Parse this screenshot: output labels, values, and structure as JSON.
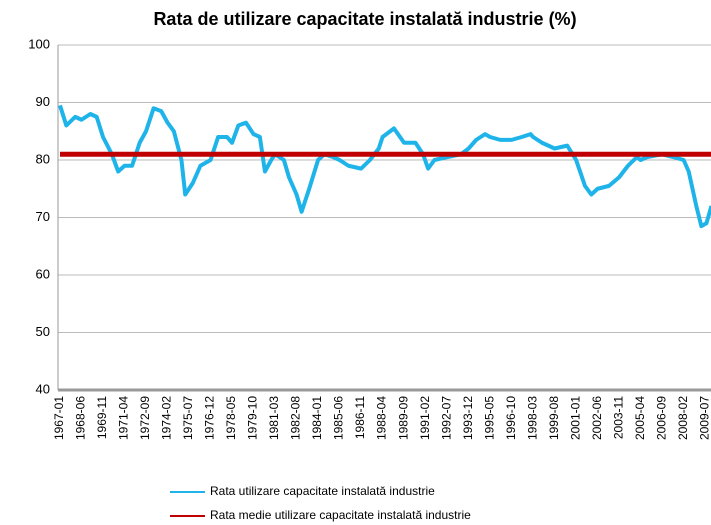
{
  "chart_data": {
    "type": "line",
    "title": "Rata de utilizare capacitate instalată industrie (%)",
    "ylim": [
      40,
      100
    ],
    "yticks": [
      40,
      50,
      60,
      70,
      80,
      90,
      100
    ],
    "grid": true,
    "xticks": [
      "1967-01",
      "1968-06",
      "1969-11",
      "1971-04",
      "1972-09",
      "1974-02",
      "1975-07",
      "1976-12",
      "1978-05",
      "1979-10",
      "1981-03",
      "1982-08",
      "1984-01",
      "1985-06",
      "1986-11",
      "1988-04",
      "1989-09",
      "1991-02",
      "1992-07",
      "1993-12",
      "1995-05",
      "1996-10",
      "1998-03",
      "1999-08",
      "2001-01",
      "2002-06",
      "2003-11",
      "2005-04",
      "2006-09",
      "2008-02",
      "2009-07"
    ],
    "series": [
      {
        "name": "Rata utilizare capacitate instalată industrie",
        "color": "#1eb4ea",
        "x": [
          "1967-01",
          "1967-06",
          "1968-01",
          "1968-06",
          "1969-01",
          "1969-06",
          "1969-11",
          "1970-06",
          "1970-11",
          "1971-04",
          "1971-10",
          "1972-04",
          "1972-09",
          "1973-03",
          "1973-09",
          "1974-02",
          "1974-07",
          "1975-01",
          "1975-04",
          "1975-10",
          "1976-04",
          "1976-12",
          "1977-06",
          "1978-01",
          "1978-05",
          "1978-10",
          "1979-04",
          "1979-10",
          "1980-03",
          "1980-07",
          "1980-12",
          "1981-03",
          "1981-10",
          "1982-02",
          "1982-08",
          "1982-12",
          "1983-06",
          "1984-01",
          "1984-06",
          "1985-01",
          "1985-06",
          "1986-01",
          "1986-11",
          "1987-06",
          "1988-01",
          "1988-04",
          "1989-01",
          "1989-09",
          "1990-06",
          "1990-12",
          "1991-04",
          "1991-09",
          "1992-07",
          "1993-06",
          "1993-12",
          "1994-06",
          "1995-01",
          "1995-05",
          "1996-01",
          "1996-10",
          "1997-06",
          "1998-01",
          "1998-03",
          "1998-10",
          "1999-08",
          "2000-06",
          "2001-01",
          "2001-08",
          "2002-01",
          "2002-06",
          "2003-03",
          "2003-11",
          "2004-06",
          "2005-01",
          "2005-04",
          "2005-09",
          "2006-09",
          "2007-06",
          "2008-02",
          "2008-06",
          "2008-12",
          "2009-04",
          "2009-08",
          "2009-12"
        ],
        "values": [
          89.5,
          86,
          87.5,
          87,
          88,
          87.5,
          84,
          81,
          78,
          79,
          79,
          83,
          85,
          89,
          88.5,
          86.5,
          85,
          80,
          74,
          76,
          79,
          80,
          84,
          84,
          83,
          86,
          86.5,
          84.5,
          84,
          78,
          80,
          81,
          80,
          77,
          74,
          71,
          75,
          80,
          81,
          80.5,
          80,
          79,
          78.5,
          80,
          82,
          84,
          85.5,
          83,
          83,
          81,
          78.5,
          80,
          80.5,
          81,
          82,
          83.5,
          84.5,
          84,
          83.5,
          83.5,
          84,
          84.5,
          84,
          83,
          82,
          82.5,
          80,
          75.5,
          74,
          75,
          75.5,
          77,
          79,
          80.5,
          80,
          80.5,
          81,
          80.5,
          80,
          78,
          72,
          68.5,
          69,
          72
        ]
      },
      {
        "name": "Rata medie utilizare capacitate instalată industrie",
        "color": "#c00000",
        "x": [
          "1967-01",
          "2009-12"
        ],
        "values": [
          81,
          81
        ]
      }
    ]
  }
}
